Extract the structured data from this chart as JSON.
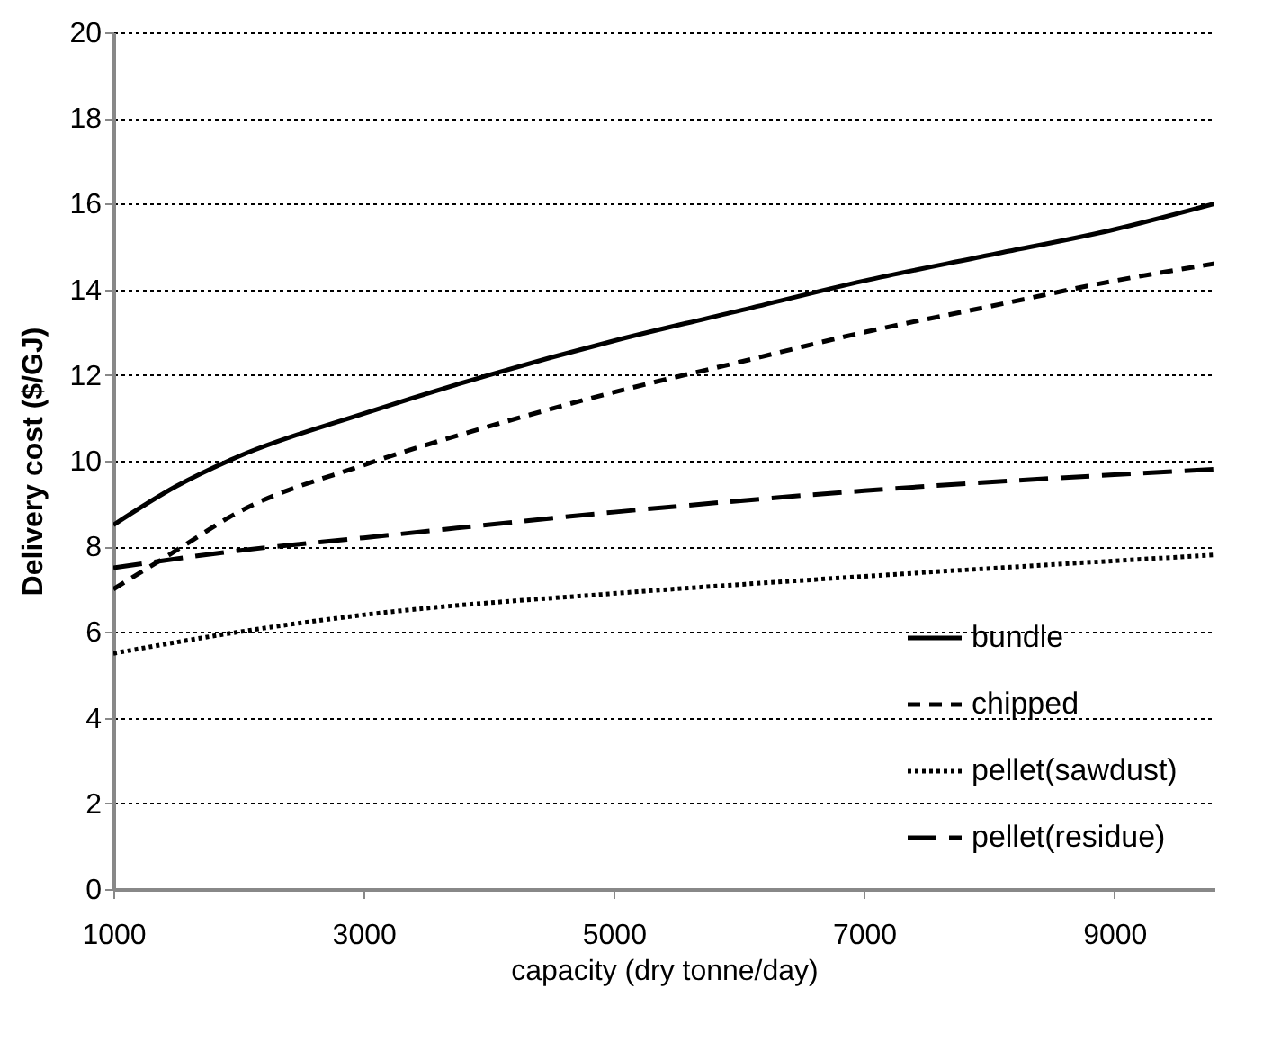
{
  "chart_data": {
    "type": "line",
    "xlabel": "capacity (dry tonne/day)",
    "ylabel": "Delivery cost ($/GJ)",
    "xlim": [
      1000,
      9800
    ],
    "xticks": [
      1000,
      3000,
      5000,
      7000,
      9000
    ],
    "ylim": [
      0,
      20
    ],
    "yticks": [
      0,
      2,
      4,
      6,
      8,
      10,
      12,
      14,
      16,
      18,
      20
    ],
    "grid": "y",
    "legend": "bottom right",
    "series": [
      {
        "name": "bundle",
        "color": "#000000",
        "line_style": "solid",
        "x": [
          1000,
          1500,
          2000,
          3000,
          4000,
          5000,
          6000,
          7000,
          8000,
          9000,
          9800
        ],
        "values": [
          8.5,
          9.4,
          10.1,
          11.1,
          12.0,
          12.8,
          13.5,
          14.2,
          14.8,
          15.4,
          16.0
        ]
      },
      {
        "name": "chipped",
        "color": "#000000",
        "line_style": "dashed",
        "x": [
          1000,
          1500,
          2000,
          3000,
          4000,
          5000,
          6000,
          7000,
          8000,
          9000,
          9800
        ],
        "values": [
          7.0,
          7.9,
          8.8,
          9.9,
          10.8,
          11.6,
          12.3,
          13.0,
          13.6,
          14.2,
          14.6
        ]
      },
      {
        "name": "pellet(sawdust)",
        "color": "#000000",
        "line_style": "dotted",
        "x": [
          1000,
          2000,
          3000,
          5000,
          7000,
          9800
        ],
        "values": [
          5.5,
          6.0,
          6.4,
          6.9,
          7.3,
          7.8
        ]
      },
      {
        "name": "pellet(residue)",
        "color": "#000000",
        "line_style": "dashed",
        "x": [
          1000,
          2000,
          3000,
          5000,
          7000,
          9800
        ],
        "values": [
          7.5,
          7.9,
          8.2,
          8.8,
          9.3,
          9.8
        ]
      }
    ]
  }
}
